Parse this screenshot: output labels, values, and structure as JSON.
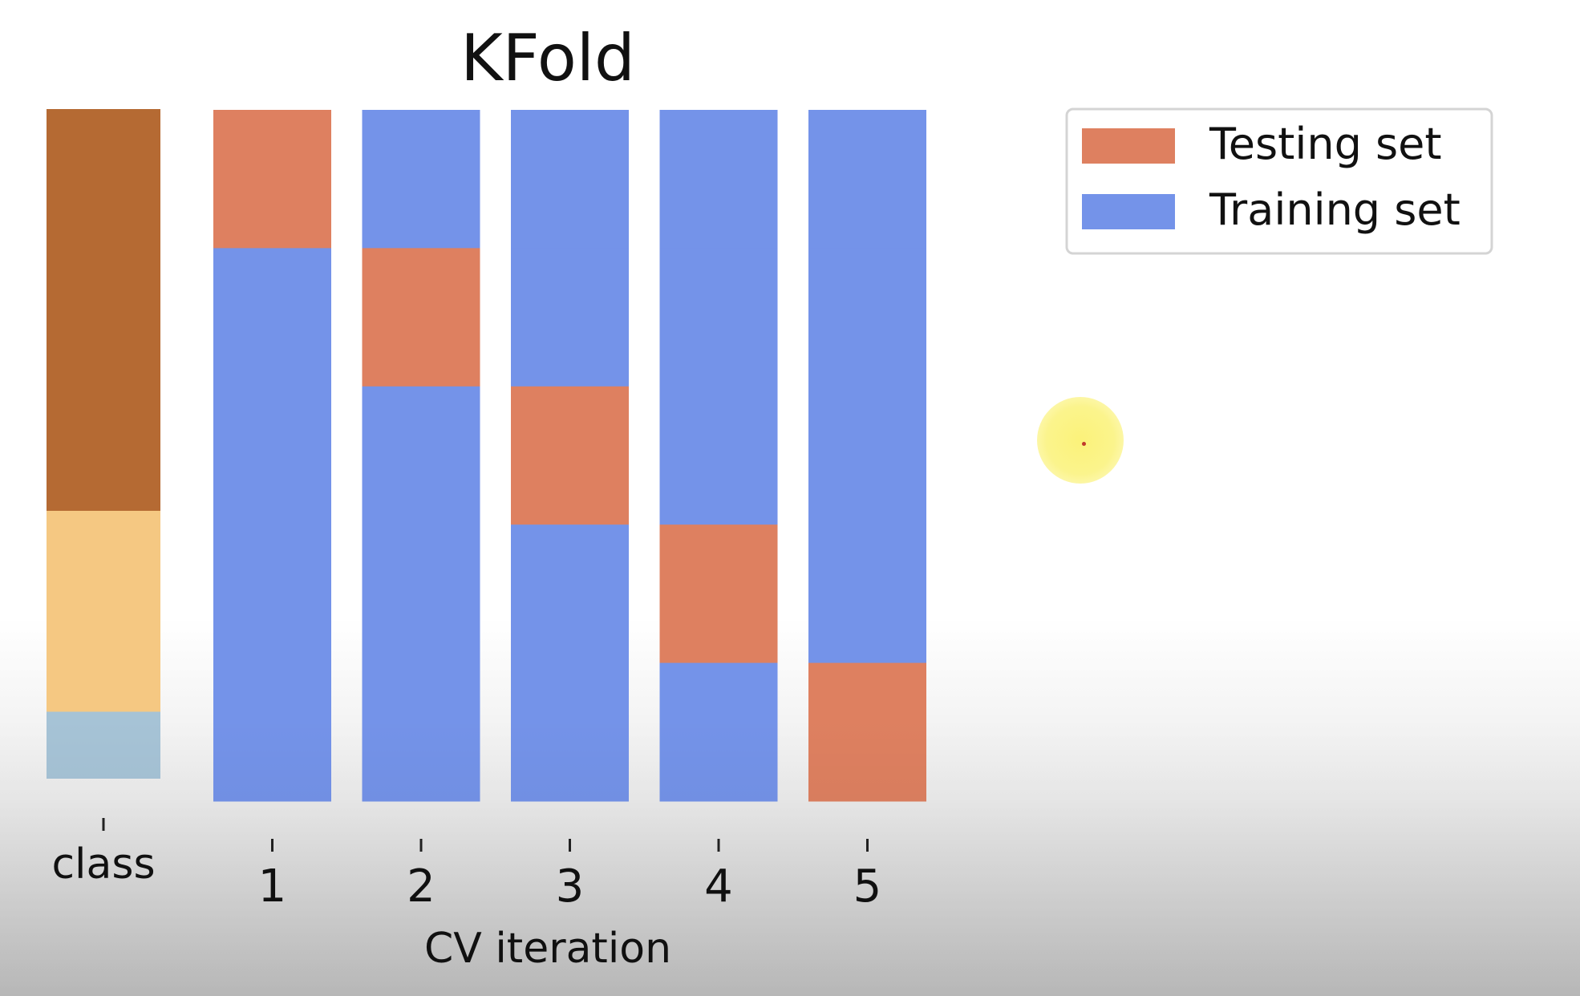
{
  "chart_data": {
    "type": "bar",
    "title": "KFold",
    "xlabel": "CV iteration",
    "ylabel": "",
    "class_column": {
      "label": "class",
      "segments": [
        {
          "fraction": 0.6,
          "color": "#b56a33"
        },
        {
          "fraction": 0.3,
          "color": "#f5c882"
        },
        {
          "fraction": 0.1,
          "color": "#a6c3d6"
        }
      ]
    },
    "categories": [
      "1",
      "2",
      "3",
      "4",
      "5"
    ],
    "n_splits": 5,
    "test_fold_index": [
      0,
      1,
      2,
      3,
      4
    ],
    "series": [
      {
        "name": "Testing set",
        "color": "#de8060"
      },
      {
        "name": "Training set",
        "color": "#7493e9"
      }
    ],
    "legend": {
      "position": "top-right"
    },
    "grid": false
  },
  "overlay": {
    "cursor_highlight_color": "#fbf27a"
  }
}
